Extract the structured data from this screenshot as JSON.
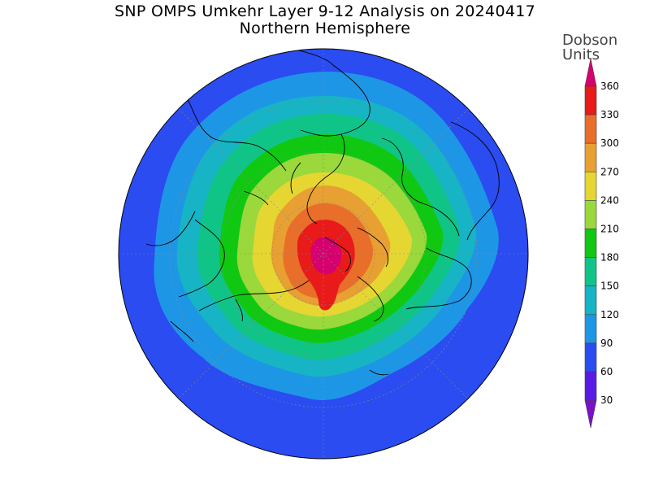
{
  "title": {
    "line1": "SNP OMPS Umkehr Layer 9-12 Analysis on 20240417",
    "line2": "Northern Hemisphere"
  },
  "colorbar": {
    "units_line1": "Dobson",
    "units_line2": "Units",
    "ticks": [
      "30",
      "60",
      "90",
      "120",
      "150",
      "180",
      "210",
      "240",
      "270",
      "300",
      "330",
      "360"
    ],
    "colors": [
      "#7a10c8",
      "#5a1ae6",
      "#2a4cf0",
      "#1e96e6",
      "#16b4c4",
      "#10c488",
      "#10c812",
      "#9ad83c",
      "#e6d632",
      "#e8a032",
      "#e86e2a",
      "#e81a1a",
      "#d6006e"
    ]
  },
  "map": {
    "projection": "north polar stereographic",
    "contour_colors": {
      "90": "#2a4cf0",
      "120": "#1e96e6",
      "150": "#16b4c4",
      "180": "#10c488",
      "210": "#10c812",
      "240": "#9ad83c",
      "270": "#e6d632",
      "300": "#e8a032",
      "330": "#e86e2a",
      "360": "#e81a1a",
      "max": "#d6006e"
    }
  }
}
